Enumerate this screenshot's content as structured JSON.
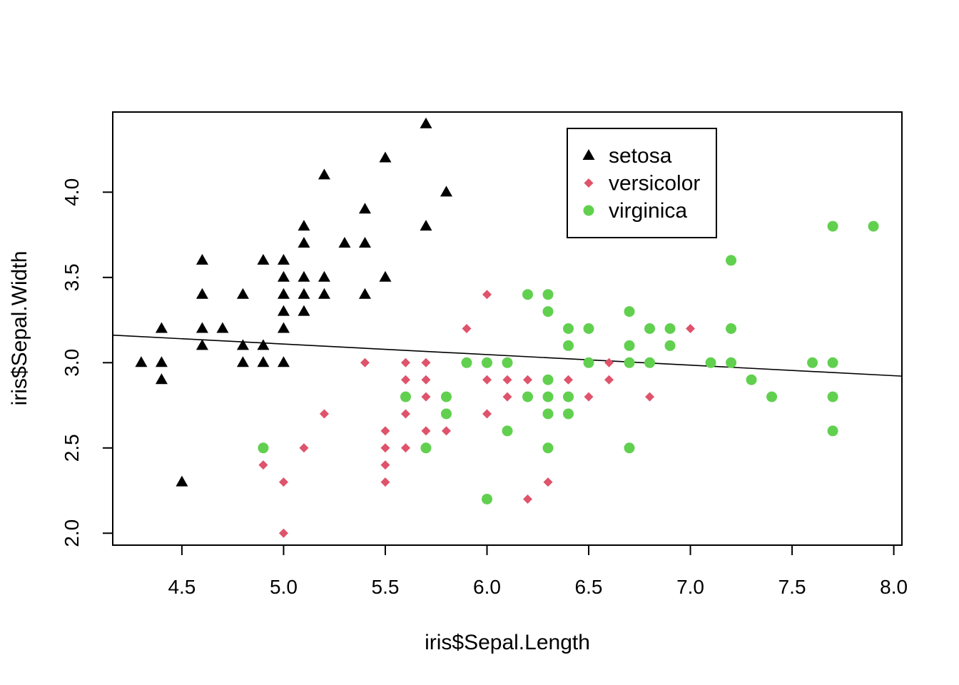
{
  "chart_data": {
    "type": "scatter",
    "title": "",
    "xlabel": "iris$Sepal.Length",
    "ylabel": "iris$Sepal.Width",
    "xlim": [
      4.16,
      8.04
    ],
    "ylim": [
      1.93,
      4.47
    ],
    "x_ticks": [
      "4.5",
      "5.0",
      "5.5",
      "6.0",
      "6.5",
      "7.0",
      "7.5",
      "8.0"
    ],
    "y_ticks": [
      "2.0",
      "2.5",
      "3.0",
      "3.5",
      "4.0"
    ],
    "grid": false,
    "legend_position": "top-right (inside plot)",
    "series": [
      {
        "name": "setosa",
        "marker": "triangle",
        "color": "#000000",
        "points": [
          [
            4.3,
            3.0
          ],
          [
            4.4,
            3.0
          ],
          [
            4.4,
            2.9
          ],
          [
            4.4,
            3.2
          ],
          [
            4.5,
            2.3
          ],
          [
            4.6,
            3.6
          ],
          [
            4.6,
            3.4
          ],
          [
            4.6,
            3.2
          ],
          [
            4.6,
            3.1
          ],
          [
            4.7,
            3.2
          ],
          [
            4.8,
            3.4
          ],
          [
            4.8,
            3.1
          ],
          [
            4.8,
            3.0
          ],
          [
            4.9,
            3.6
          ],
          [
            4.9,
            3.1
          ],
          [
            4.9,
            3.0
          ],
          [
            5.0,
            3.6
          ],
          [
            5.0,
            3.5
          ],
          [
            5.0,
            3.4
          ],
          [
            5.0,
            3.3
          ],
          [
            5.0,
            3.2
          ],
          [
            5.0,
            3.0
          ],
          [
            5.1,
            3.8
          ],
          [
            5.1,
            3.7
          ],
          [
            5.1,
            3.5
          ],
          [
            5.1,
            3.4
          ],
          [
            5.1,
            3.3
          ],
          [
            5.2,
            4.1
          ],
          [
            5.2,
            3.5
          ],
          [
            5.2,
            3.4
          ],
          [
            5.3,
            3.7
          ],
          [
            5.4,
            3.9
          ],
          [
            5.4,
            3.7
          ],
          [
            5.4,
            3.4
          ],
          [
            5.5,
            4.2
          ],
          [
            5.5,
            3.5
          ],
          [
            5.7,
            4.4
          ],
          [
            5.7,
            3.8
          ],
          [
            5.8,
            4.0
          ]
        ]
      },
      {
        "name": "versicolor",
        "marker": "diamond",
        "color": "#DF536B",
        "points": [
          [
            4.9,
            2.4
          ],
          [
            5.0,
            2.3
          ],
          [
            5.0,
            2.0
          ],
          [
            5.1,
            2.5
          ],
          [
            5.2,
            2.7
          ],
          [
            5.4,
            3.0
          ],
          [
            5.5,
            2.6
          ],
          [
            5.5,
            2.5
          ],
          [
            5.5,
            2.4
          ],
          [
            5.5,
            2.3
          ],
          [
            5.6,
            3.0
          ],
          [
            5.6,
            2.9
          ],
          [
            5.6,
            2.7
          ],
          [
            5.6,
            2.5
          ],
          [
            5.7,
            3.0
          ],
          [
            5.7,
            2.9
          ],
          [
            5.7,
            2.8
          ],
          [
            5.7,
            2.6
          ],
          [
            5.8,
            2.6
          ],
          [
            5.9,
            3.2
          ],
          [
            6.0,
            3.4
          ],
          [
            6.0,
            2.9
          ],
          [
            6.0,
            2.7
          ],
          [
            6.1,
            2.9
          ],
          [
            6.1,
            2.8
          ],
          [
            6.2,
            2.9
          ],
          [
            6.2,
            2.2
          ],
          [
            6.3,
            2.3
          ],
          [
            6.4,
            2.9
          ],
          [
            6.5,
            2.8
          ],
          [
            6.6,
            3.0
          ],
          [
            6.6,
            2.9
          ],
          [
            6.8,
            2.8
          ],
          [
            7.0,
            3.2
          ]
        ]
      },
      {
        "name": "virginica",
        "marker": "circle",
        "color": "#61D04F",
        "points": [
          [
            4.9,
            2.5
          ],
          [
            5.6,
            2.8
          ],
          [
            5.7,
            2.5
          ],
          [
            5.8,
            2.8
          ],
          [
            5.8,
            2.7
          ],
          [
            5.9,
            3.0
          ],
          [
            6.0,
            3.0
          ],
          [
            6.0,
            2.2
          ],
          [
            6.1,
            3.0
          ],
          [
            6.1,
            2.6
          ],
          [
            6.2,
            3.4
          ],
          [
            6.2,
            2.8
          ],
          [
            6.3,
            3.4
          ],
          [
            6.3,
            3.3
          ],
          [
            6.3,
            2.9
          ],
          [
            6.3,
            2.8
          ],
          [
            6.3,
            2.7
          ],
          [
            6.3,
            2.5
          ],
          [
            6.4,
            3.2
          ],
          [
            6.4,
            3.1
          ],
          [
            6.4,
            2.8
          ],
          [
            6.4,
            2.7
          ],
          [
            6.5,
            3.2
          ],
          [
            6.5,
            3.0
          ],
          [
            6.7,
            3.3
          ],
          [
            6.7,
            3.1
          ],
          [
            6.7,
            3.0
          ],
          [
            6.7,
            2.5
          ],
          [
            6.8,
            3.2
          ],
          [
            6.8,
            3.0
          ],
          [
            6.9,
            3.2
          ],
          [
            6.9,
            3.1
          ],
          [
            7.1,
            3.0
          ],
          [
            7.2,
            3.6
          ],
          [
            7.2,
            3.2
          ],
          [
            7.2,
            3.0
          ],
          [
            7.3,
            2.9
          ],
          [
            7.4,
            2.8
          ],
          [
            7.6,
            3.0
          ],
          [
            7.7,
            3.8
          ],
          [
            7.7,
            3.0
          ],
          [
            7.7,
            2.8
          ],
          [
            7.7,
            2.6
          ],
          [
            7.9,
            3.8
          ]
        ]
      }
    ],
    "regression_line": {
      "type": "linear",
      "intercept": 3.4189,
      "slope": -0.0619
    }
  }
}
